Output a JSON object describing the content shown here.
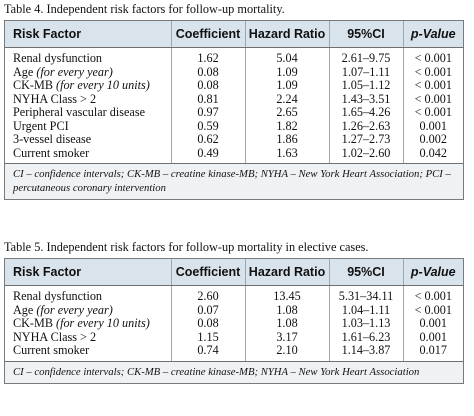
{
  "table4": {
    "caption": "Table 4. Independent risk factors for follow-up mortality.",
    "headers": [
      "Risk Factor",
      "Coefficient",
      "Hazard Ratio",
      "95%CI",
      "p-Value"
    ],
    "rows": [
      {
        "factor": "Renal dysfunction",
        "qualifier": "",
        "coef": "1.62",
        "hr": "5.04",
        "ci": "2.61–9.75",
        "p": "< 0.001"
      },
      {
        "factor": "Age",
        "qualifier": "(for every year)",
        "coef": "0.08",
        "hr": "1.09",
        "ci": "1.07–1.11",
        "p": "< 0.001"
      },
      {
        "factor": "CK-MB",
        "qualifier": "(for every 10 units)",
        "coef": "0.08",
        "hr": "1.09",
        "ci": "1.05–1.12",
        "p": "< 0.001"
      },
      {
        "factor": "NYHA Class > 2",
        "qualifier": "",
        "coef": "0.81",
        "hr": "2.24",
        "ci": "1.43–3.51",
        "p": "< 0.001"
      },
      {
        "factor": "Peripheral vascular disease",
        "qualifier": "",
        "coef": "0.97",
        "hr": "2.65",
        "ci": "1.65–4.26",
        "p": "< 0.001"
      },
      {
        "factor": "Urgent PCI",
        "qualifier": "",
        "coef": "0.59",
        "hr": "1.82",
        "ci": "1.26–2.63",
        "p": "0.001"
      },
      {
        "factor": "3-vessel disease",
        "qualifier": "",
        "coef": "0.62",
        "hr": "1.86",
        "ci": "1.27–2.73",
        "p": "0.002"
      },
      {
        "factor": "Current smoker",
        "qualifier": "",
        "coef": "0.49",
        "hr": "1.63",
        "ci": "1.02–2.60",
        "p": "0.042"
      }
    ],
    "note": "CI – confidence intervals; CK-MB – creatine kinase-MB; NYHA – New York Heart Association; PCI – percutaneous coronary intervention"
  },
  "table5": {
    "caption": "Table 5. Independent risk factors for follow-up mortality in elective cases.",
    "headers": [
      "Risk Factor",
      "Coefficient",
      "Hazard Ratio",
      "95%CI",
      "p-Value"
    ],
    "rows": [
      {
        "factor": "Renal dysfunction",
        "qualifier": "",
        "coef": "2.60",
        "hr": "13.45",
        "ci": "5.31–34.11",
        "p": "< 0.001"
      },
      {
        "factor": "Age",
        "qualifier": "(for every year)",
        "coef": "0.07",
        "hr": "1.08",
        "ci": "1.04–1.11",
        "p": "< 0.001"
      },
      {
        "factor": "CK-MB",
        "qualifier": "(for every 10 units)",
        "coef": "0.08",
        "hr": "1.08",
        "ci": "1.03–1.13",
        "p": "0.001"
      },
      {
        "factor": "NYHA Class > 2",
        "qualifier": "",
        "coef": "1.15",
        "hr": "3.17",
        "ci": "1.61–6.23",
        "p": "0.001"
      },
      {
        "factor": "Current smoker",
        "qualifier": "",
        "coef": "0.74",
        "hr": "2.10",
        "ci": "1.14–3.87",
        "p": "0.017"
      }
    ],
    "note": "CI – confidence intervals; CK-MB – creatine kinase-MB; NYHA – New York Heart Association"
  },
  "colors": {
    "header_bg": "#d8e3ec",
    "note_bg": "#eef2f5",
    "border": "#7a7a7a"
  }
}
